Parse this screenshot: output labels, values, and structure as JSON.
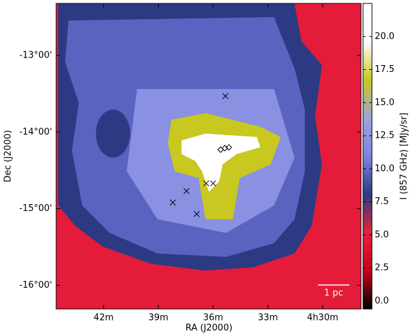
{
  "chart_data": {
    "type": "image",
    "xlabel": "RA (J2000)",
    "ylabel": "Dec (J2000)",
    "xlim": [
      44.6,
      27.9
    ],
    "ylim": [
      -16.31,
      -12.32
    ],
    "xticks": [
      {
        "value": 42,
        "label": "42m"
      },
      {
        "value": 39,
        "label": "39m"
      },
      {
        "value": 36,
        "label": "36m"
      },
      {
        "value": 33,
        "label": "33m"
      },
      {
        "value": 30,
        "label": "4h30m"
      }
    ],
    "yticks": [
      {
        "value": -13,
        "label": "-13°00'"
      },
      {
        "value": -14,
        "label": "-14°00'"
      },
      {
        "value": -15,
        "label": "-15°00'"
      },
      {
        "value": -16,
        "label": "-16°00'"
      }
    ],
    "colorbar": {
      "label": "I (857 GHz) [MJy/sr]",
      "clim": [
        -0.6,
        22.5
      ],
      "ticks": [
        {
          "value": 0,
          "label": "0.0"
        },
        {
          "value": 2.5,
          "label": "2.5"
        },
        {
          "value": 5,
          "label": "5.0"
        },
        {
          "value": 7.5,
          "label": "7.5"
        },
        {
          "value": 10,
          "label": "10.0"
        },
        {
          "value": 12.5,
          "label": "12.5"
        },
        {
          "value": 15,
          "label": "15.0"
        },
        {
          "value": 17.5,
          "label": "17.5"
        },
        {
          "value": 20,
          "label": "20.0"
        }
      ],
      "colormap": [
        "#000000",
        "#c8001c",
        "#e8203c",
        "#2c3a84",
        "#7c84e0",
        "#a0a2d8",
        "#c8c820",
        "#ffffff",
        "#ffffff"
      ]
    },
    "markers": [
      {
        "marker": "x",
        "color": "#000000",
        "x": [
          35.33,
          38.21,
          37.46,
          36.38,
          36.0,
          36.9
        ],
        "y": [
          -13.53,
          -14.92,
          -14.77,
          -14.67,
          -14.67,
          -15.07
        ]
      },
      {
        "marker": "diamond",
        "color": "#000000",
        "x": [
          35.59,
          35.36,
          35.14
        ],
        "y": [
          -14.23,
          -14.21,
          -14.2
        ]
      }
    ],
    "annotations": [
      "1 pc"
    ]
  }
}
